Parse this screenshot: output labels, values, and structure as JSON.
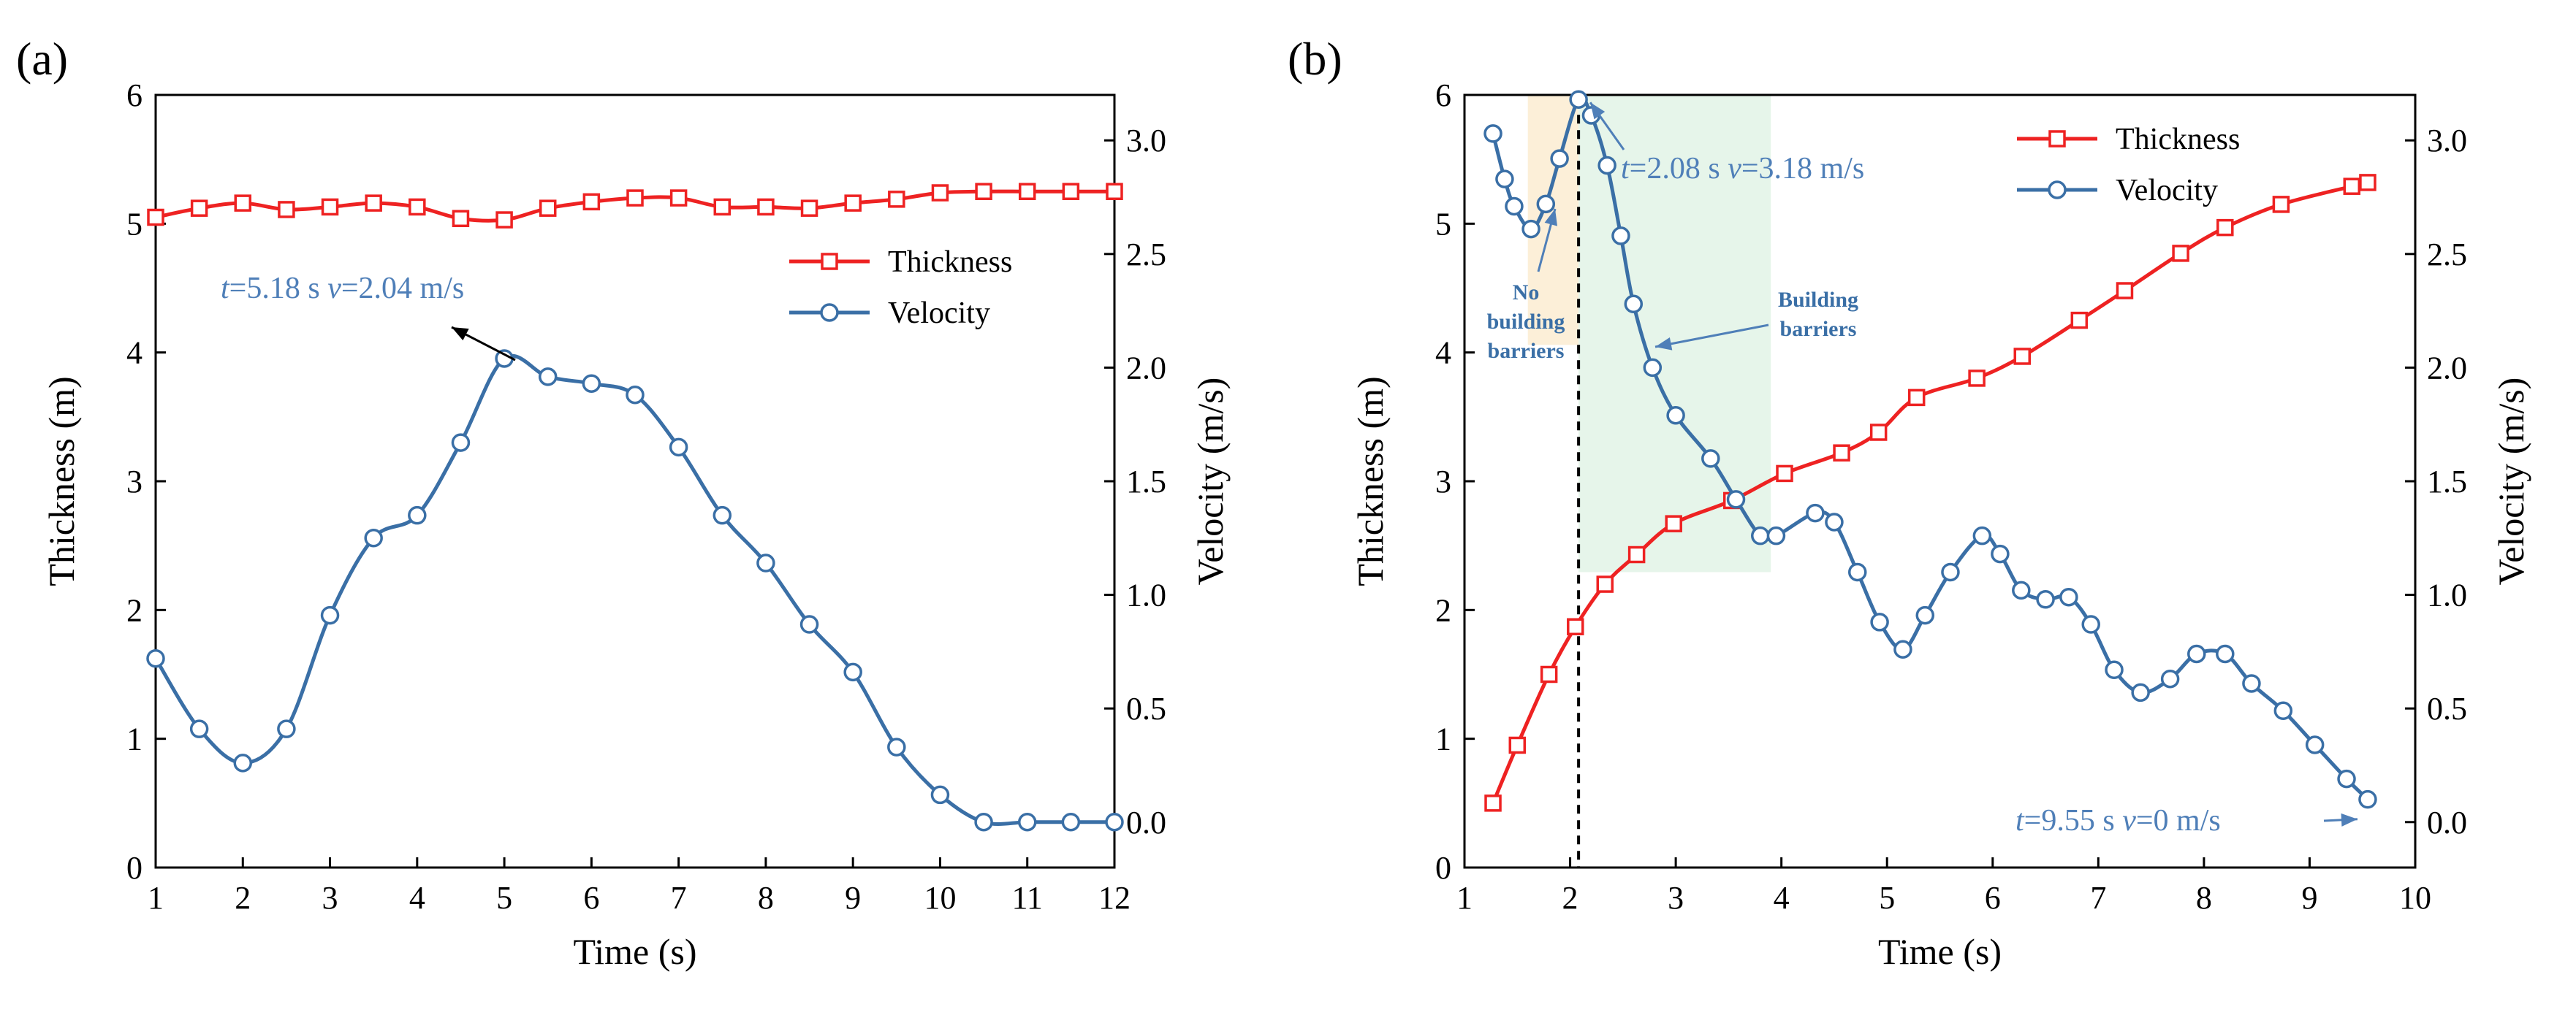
{
  "colors": {
    "thickness": "#ee2222",
    "velocity": "#3a6fa6",
    "annotation": "#4f7fb8",
    "region_orange": "#fcefd8",
    "region_green": "#e6f5ea"
  },
  "legend": {
    "thickness": "Thickness",
    "velocity": "Velocity"
  },
  "chart_data": [
    {
      "type": "line",
      "panel_label": "(a)",
      "xlabel": "Time (s)",
      "ylabel_left": "Thickness (m)",
      "ylabel_right": "Velocity (m/s)",
      "xlim": [
        1,
        12
      ],
      "ylim_left": [
        0,
        6
      ],
      "ylim_right": [
        -0.2,
        3.2
      ],
      "xticks": [
        "1",
        "2",
        "3",
        "4",
        "5",
        "6",
        "7",
        "8",
        "9",
        "10",
        "11",
        "12"
      ],
      "yticks_left": [
        "0",
        "1",
        "2",
        "3",
        "4",
        "5",
        "6"
      ],
      "yticks_right": [
        "0.0",
        "0.5",
        "1.0",
        "1.5",
        "2.0",
        "2.5",
        "3.0"
      ],
      "legend_position": "top-right",
      "series": [
        {
          "name": "Thickness",
          "axis": "left",
          "x": [
            1,
            1.5,
            2,
            2.5,
            3,
            3.5,
            4,
            4.5,
            5,
            5.5,
            6,
            6.5,
            7,
            7.5,
            8,
            8.5,
            9,
            9.5,
            10,
            10.5,
            11,
            11.5,
            12
          ],
          "y": [
            5.05,
            5.12,
            5.16,
            5.11,
            5.13,
            5.16,
            5.13,
            5.04,
            5.03,
            5.12,
            5.17,
            5.2,
            5.2,
            5.13,
            5.13,
            5.12,
            5.16,
            5.19,
            5.24,
            5.25,
            5.25,
            5.25,
            5.25
          ]
        },
        {
          "name": "Velocity",
          "axis": "right",
          "x": [
            1,
            1.5,
            2,
            2.5,
            3,
            3.5,
            4,
            4.5,
            5,
            5.5,
            6,
            6.5,
            7,
            7.5,
            8,
            8.5,
            9,
            9.5,
            10,
            10.5,
            11,
            11.5,
            12
          ],
          "y": [
            0.72,
            0.41,
            0.26,
            0.41,
            0.91,
            1.25,
            1.35,
            1.67,
            2.04,
            1.96,
            1.93,
            1.88,
            1.65,
            1.35,
            1.14,
            0.87,
            0.66,
            0.33,
            0.12,
            0.0,
            0.0,
            0.0,
            0.0
          ]
        }
      ],
      "annotations": [
        {
          "t": "5.18",
          "v": "2.04",
          "at_x": 5.18,
          "at_y": 2.04
        }
      ]
    },
    {
      "type": "line",
      "panel_label": "(b)",
      "xlabel": "Time (s)",
      "ylabel_left": "Thickness (m)",
      "ylabel_right": "Velocity (m/s)",
      "xlim": [
        1,
        10
      ],
      "ylim_left": [
        0,
        6
      ],
      "ylim_right": [
        -0.2,
        3.2
      ],
      "xticks": [
        "1",
        "2",
        "3",
        "4",
        "5",
        "6",
        "7",
        "8",
        "9",
        "10"
      ],
      "yticks_left": [
        "0",
        "1",
        "2",
        "3",
        "4",
        "5",
        "6"
      ],
      "yticks_right": [
        "0.0",
        "0.5",
        "1.0",
        "1.5",
        "2.0",
        "2.5",
        "3.0"
      ],
      "legend_position": "top-right",
      "vline_x": 2.08,
      "regions": [
        {
          "label": "No building barriers",
          "x0": 1.6,
          "x1": 2.08,
          "y0": 2.1,
          "y1": 3.2,
          "lines": [
            "No",
            "building",
            "barriers"
          ]
        },
        {
          "label": "Building barriers",
          "x0": 2.08,
          "x1": 3.9,
          "y0": 1.1,
          "y1": 3.2,
          "lines": [
            "Building",
            "barriers"
          ]
        }
      ],
      "series": [
        {
          "name": "Thickness",
          "axis": "left",
          "x": [
            1.27,
            1.5,
            1.8,
            2.05,
            2.33,
            2.63,
            2.98,
            3.53,
            4.03,
            4.57,
            4.92,
            5.28,
            5.85,
            6.28,
            6.82,
            7.25,
            7.78,
            8.2,
            8.73,
            9.4,
            9.55
          ],
          "y": [
            0.5,
            0.95,
            1.5,
            1.87,
            2.2,
            2.43,
            2.67,
            2.85,
            3.06,
            3.22,
            3.38,
            3.65,
            3.8,
            3.97,
            4.25,
            4.48,
            4.77,
            4.97,
            5.15,
            5.29,
            5.32
          ]
        },
        {
          "name": "Velocity",
          "axis": "right",
          "x": [
            1.27,
            1.38,
            1.47,
            1.63,
            1.77,
            1.9,
            2.08,
            2.2,
            2.35,
            2.48,
            2.6,
            2.78,
            3.0,
            3.33,
            3.57,
            3.8,
            3.95,
            4.32,
            4.5,
            4.72,
            4.93,
            5.15,
            5.36,
            5.6,
            5.9,
            6.07,
            6.27,
            6.5,
            6.72,
            6.93,
            7.15,
            7.4,
            7.68,
            7.93,
            8.2,
            8.45,
            8.75,
            9.05,
            9.35,
            9.55
          ],
          "y": [
            3.03,
            2.83,
            2.71,
            2.61,
            2.72,
            2.92,
            3.18,
            3.11,
            2.89,
            2.58,
            2.28,
            2.0,
            1.79,
            1.6,
            1.42,
            1.26,
            1.26,
            1.36,
            1.32,
            1.1,
            0.88,
            0.76,
            0.91,
            1.1,
            1.26,
            1.18,
            1.02,
            0.98,
            0.99,
            0.87,
            0.67,
            0.57,
            0.63,
            0.74,
            0.74,
            0.61,
            0.49,
            0.34,
            0.19,
            0.1
          ]
        }
      ],
      "annotations": [
        {
          "t": "2.08",
          "v": "3.18",
          "at_x": 2.08,
          "at_y": 3.18
        },
        {
          "t": "9.55",
          "v": "0",
          "at_x": 9.55,
          "at_y": 0.0
        }
      ]
    }
  ]
}
